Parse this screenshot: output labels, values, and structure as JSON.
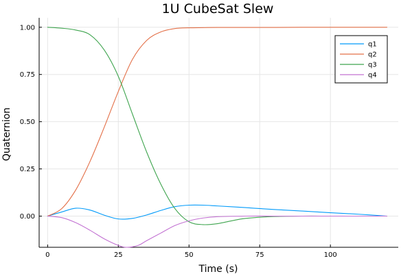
{
  "chart_data": {
    "type": "line",
    "title": "1U CubeSat Slew",
    "xlabel": "Time (s)",
    "ylabel": "Quaternion",
    "xlim": [
      -3,
      124
    ],
    "ylim": [
      -0.165,
      1.05
    ],
    "xticks": [
      0,
      25,
      50,
      75,
      100
    ],
    "yticks": [
      0.0,
      0.25,
      0.5,
      0.75,
      1.0
    ],
    "xtick_labels": [
      "0",
      "25",
      "50",
      "75",
      "100"
    ],
    "ytick_labels": [
      "0.00",
      "0.25",
      "0.50",
      "0.75",
      "1.00"
    ],
    "grid": true,
    "legend_position": "top-right",
    "series": [
      {
        "name": "q1",
        "color": "#009AFA",
        "x": [
          0,
          5,
          10,
          15,
          20,
          25,
          30,
          35,
          40,
          45,
          50,
          55,
          60,
          70,
          80,
          90,
          100,
          110,
          120
        ],
        "y": [
          0.0,
          0.022,
          0.042,
          0.032,
          0.005,
          -0.015,
          -0.012,
          0.006,
          0.03,
          0.05,
          0.058,
          0.058,
          0.054,
          0.045,
          0.035,
          0.027,
          0.018,
          0.01,
          0.0
        ]
      },
      {
        "name": "q2",
        "color": "#E36F47",
        "x": [
          0,
          5,
          10,
          15,
          20,
          25,
          30,
          35,
          40,
          45,
          50,
          55,
          60,
          70,
          80,
          90,
          100,
          110,
          120
        ],
        "y": [
          0.0,
          0.04,
          0.14,
          0.29,
          0.47,
          0.66,
          0.83,
          0.93,
          0.975,
          0.993,
          0.997,
          0.998,
          0.999,
          0.999,
          0.999,
          1.0,
          1.0,
          1.0,
          1.0
        ]
      },
      {
        "name": "q3",
        "color": "#3EA44E",
        "x": [
          0,
          5,
          10,
          15,
          20,
          25,
          30,
          35,
          40,
          45,
          50,
          55,
          60,
          65,
          70,
          80,
          90,
          100,
          110,
          120
        ],
        "y": [
          1.0,
          0.995,
          0.985,
          0.96,
          0.88,
          0.74,
          0.54,
          0.34,
          0.17,
          0.04,
          -0.03,
          -0.045,
          -0.04,
          -0.025,
          -0.012,
          -0.002,
          0.0,
          0.0,
          0.0,
          0.0
        ]
      },
      {
        "name": "q4",
        "color": "#C271D2",
        "x": [
          0,
          5,
          10,
          15,
          20,
          25,
          28,
          32,
          35,
          40,
          45,
          50,
          55,
          60,
          70,
          80,
          90,
          100,
          110,
          120
        ],
        "y": [
          0.0,
          -0.008,
          -0.035,
          -0.075,
          -0.12,
          -0.155,
          -0.165,
          -0.155,
          -0.13,
          -0.09,
          -0.05,
          -0.025,
          -0.01,
          -0.003,
          0.0,
          0.0,
          0.0,
          0.0,
          0.0,
          0.0
        ]
      }
    ]
  }
}
